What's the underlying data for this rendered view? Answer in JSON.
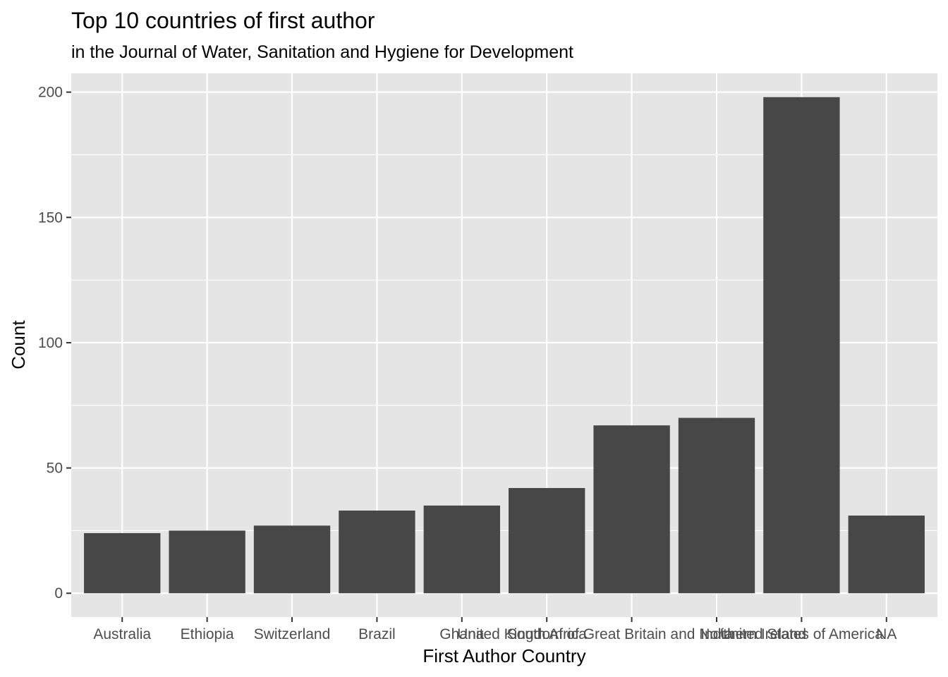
{
  "chart_data": {
    "type": "bar",
    "title": "Top 10 countries of first author",
    "subtitle": "in the Journal of Water, Sanitation and Hygiene for Development",
    "xlabel": "First Author Country",
    "ylabel": "Count",
    "categories": [
      "Australia",
      "Ethiopia",
      "Switzerland",
      "Brazil",
      "Ghana",
      "South Africa",
      "United Kingdom of Great Britain and Northern Ireland",
      "India",
      "United States of America",
      "NA"
    ],
    "values": [
      24,
      25,
      27,
      33,
      35,
      42,
      67,
      70,
      198,
      31
    ],
    "ylim": [
      -9.5,
      207.5
    ],
    "yticks": [
      0,
      50,
      100,
      150,
      200
    ],
    "grid": true,
    "legend": "none",
    "colors": {
      "panel": "#e5e5e5",
      "grid": "#ffffff",
      "bar": "#474747",
      "tick": "#333333"
    }
  }
}
